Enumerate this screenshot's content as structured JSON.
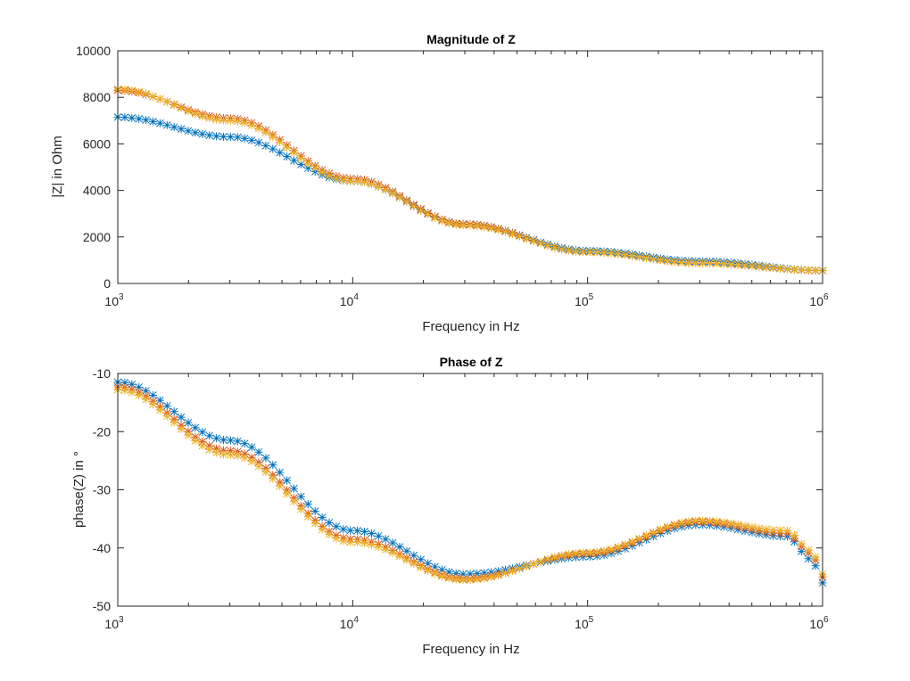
{
  "colors": {
    "series1": "#0072BD",
    "series2": "#D95319",
    "series3": "#EDB120",
    "axis": "#262626"
  },
  "chart_data": [
    {
      "type": "scatter",
      "marker": "asterisk",
      "title": "Magnitude of Z",
      "xlabel": "Frequency in Hz",
      "ylabel": "|Z| in Ohm",
      "xscale": "log",
      "xlim": [
        1000,
        1000000
      ],
      "ylim": [
        0,
        10000
      ],
      "x_ticks": [
        {
          "base": "10",
          "exp": "3"
        },
        {
          "base": "10",
          "exp": "4"
        },
        {
          "base": "10",
          "exp": "5"
        },
        {
          "base": "10",
          "exp": "6"
        }
      ],
      "y_ticks": [
        "0",
        "2000",
        "4000",
        "6000",
        "8000",
        "10000"
      ],
      "grid": false,
      "x": [
        1000,
        3000,
        10000,
        30000,
        100000,
        300000,
        1000000
      ],
      "series": [
        {
          "values": [
            7150,
            6300,
            4400,
            2550,
            1400,
            950,
            560
          ]
        },
        {
          "values": [
            8300,
            7100,
            4500,
            2550,
            1350,
            880,
            550
          ]
        },
        {
          "values": [
            8350,
            7000,
            4400,
            2500,
            1350,
            870,
            560
          ]
        }
      ]
    },
    {
      "type": "scatter",
      "marker": "asterisk",
      "title": "Phase of Z",
      "xlabel": "Frequency in Hz",
      "ylabel": "phase(Z) in °",
      "xscale": "log",
      "xlim": [
        1000,
        1000000
      ],
      "ylim": [
        -50,
        -10
      ],
      "x_ticks": [
        {
          "base": "10",
          "exp": "3"
        },
        {
          "base": "10",
          "exp": "4"
        },
        {
          "base": "10",
          "exp": "5"
        },
        {
          "base": "10",
          "exp": "6"
        }
      ],
      "y_ticks": [
        "-50",
        "-40",
        "-30",
        "-20",
        "-10"
      ],
      "grid": false,
      "x": [
        1000,
        3000,
        10000,
        30000,
        100000,
        300000,
        700000,
        900000,
        1000000
      ],
      "series": [
        {
          "values": [
            -11.5,
            -21.5,
            -37.0,
            -44.5,
            -41.5,
            -36.0,
            -38.0,
            -42.0,
            -46.0
          ]
        },
        {
          "values": [
            -12.3,
            -23.3,
            -38.5,
            -45.3,
            -41.0,
            -35.5,
            -37.5,
            -41.0,
            -45.0
          ]
        },
        {
          "values": [
            -12.8,
            -24.0,
            -39.0,
            -45.5,
            -40.8,
            -35.3,
            -37.0,
            -40.5,
            -44.5
          ]
        }
      ]
    }
  ]
}
